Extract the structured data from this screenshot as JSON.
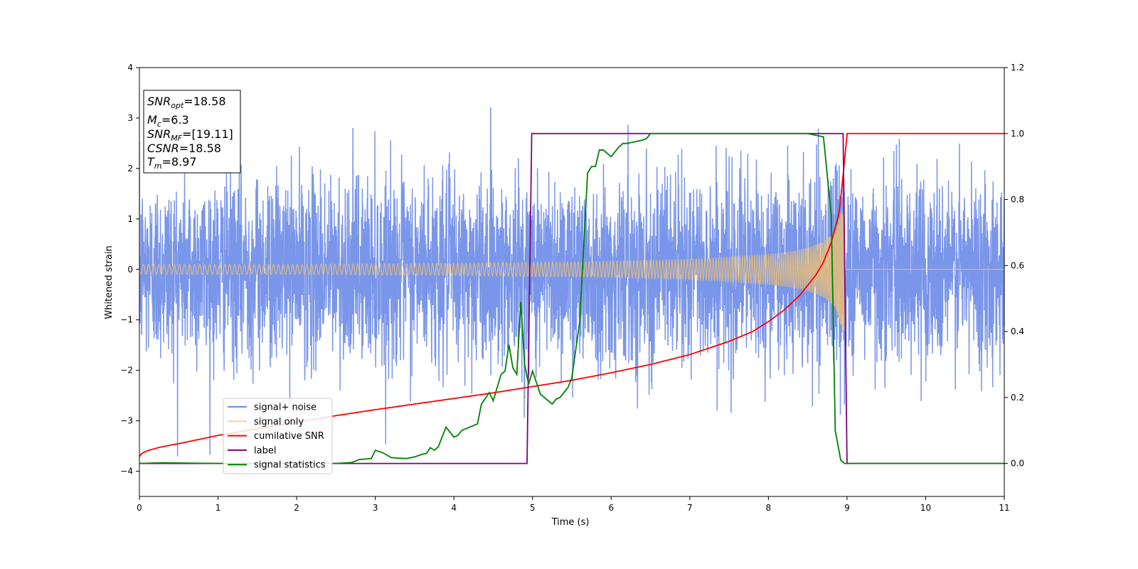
{
  "chart_data": {
    "type": "line",
    "xlabel": "Time (s)",
    "ylabel": "Whitened strain",
    "xlim": [
      0,
      11
    ],
    "ylim": [
      -4.5,
      4
    ],
    "y2lim": [
      -0.1,
      1.2
    ],
    "xticks": [
      0,
      1,
      2,
      3,
      4,
      5,
      6,
      7,
      8,
      9,
      10,
      11
    ],
    "yticks": [
      -4,
      -3,
      -2,
      -1,
      0,
      1,
      2,
      3,
      4
    ],
    "y2ticks": [
      0.0,
      0.2,
      0.4,
      0.6,
      0.8,
      1.0,
      1.2
    ],
    "grid": false,
    "legend_position": "lower-left",
    "info_box": {
      "snr_opt": {
        "base": "SNR",
        "sub": "opt",
        "value": "=18.58"
      },
      "mc": {
        "base": "M",
        "sub": "c",
        "value": "=6.3"
      },
      "snr_mf": {
        "base": "SNR",
        "sub": "MF",
        "value": "=[19.11]"
      },
      "csnr": {
        "base": "CSNR",
        "value": "=18.58"
      },
      "tm": {
        "base": "T",
        "sub": "m",
        "value": "=8.97"
      }
    },
    "series": [
      {
        "name": "signal+ noise",
        "color": "#6b8be8",
        "axis": "left",
        "description_values": {
          "noise_sigma": 0.9,
          "signal_end": 8.97
        }
      },
      {
        "name": "signal only",
        "color": "#f5c36b",
        "axis": "left",
        "envelope": {
          "x": [
            0,
            2,
            4,
            5,
            6,
            7,
            7.5,
            8,
            8.3,
            8.5,
            8.7,
            8.85,
            8.92,
            8.97,
            9.0,
            11
          ],
          "y": [
            0.1,
            0.1,
            0.12,
            0.14,
            0.16,
            0.2,
            0.24,
            0.3,
            0.36,
            0.43,
            0.55,
            0.75,
            1.1,
            1.3,
            0,
            0
          ]
        }
      },
      {
        "name": "cumilative SNR",
        "color": "#ff0000",
        "axis": "right",
        "x": [
          0,
          0.5,
          1,
          1.5,
          2,
          2.5,
          3,
          3.5,
          4,
          4.5,
          5,
          5.5,
          6,
          6.5,
          7,
          7.5,
          7.8,
          8,
          8.2,
          8.4,
          8.6,
          8.7,
          8.8,
          8.9,
          8.97,
          9.0,
          11
        ],
        "y": [
          0.02,
          0.06,
          0.085,
          0.105,
          0.125,
          0.145,
          0.163,
          0.18,
          0.197,
          0.214,
          0.233,
          0.252,
          0.275,
          0.3,
          0.33,
          0.37,
          0.4,
          0.43,
          0.465,
          0.51,
          0.57,
          0.61,
          0.67,
          0.76,
          0.92,
          1.0,
          1.0
        ]
      },
      {
        "name": "label",
        "color": "#800080",
        "axis": "right",
        "x": [
          0,
          4.93,
          4.99,
          8.95,
          9.0,
          11
        ],
        "y": [
          0,
          0,
          1,
          1,
          0,
          0
        ]
      },
      {
        "name": "signal statistics",
        "color": "#008000",
        "axis": "right",
        "x": [
          0,
          0.3,
          1,
          2,
          2.5,
          2.7,
          2.8,
          2.95,
          3.0,
          3.1,
          3.2,
          3.3,
          3.4,
          3.5,
          3.6,
          3.65,
          3.7,
          3.75,
          3.8,
          3.9,
          4.0,
          4.05,
          4.1,
          4.2,
          4.3,
          4.35,
          4.45,
          4.5,
          4.6,
          4.65,
          4.7,
          4.75,
          4.8,
          4.85,
          4.9,
          4.95,
          5.0,
          5.1,
          5.15,
          5.25,
          5.3,
          5.35,
          5.45,
          5.5,
          5.6,
          5.7,
          5.75,
          5.8,
          5.85,
          5.9,
          6.0,
          6.1,
          6.15,
          6.2,
          6.3,
          6.4,
          6.45,
          6.5,
          6.6,
          7.0,
          8.0,
          8.5,
          8.7,
          8.8,
          8.85,
          8.92,
          8.97,
          9.0,
          11
        ],
        "y": [
          0,
          0.002,
          0,
          0,
          0,
          0.003,
          0.012,
          0.015,
          0.04,
          0.032,
          0.018,
          0.016,
          0.015,
          0.02,
          0.028,
          0.03,
          0.048,
          0.04,
          0.05,
          0.11,
          0.08,
          0.085,
          0.1,
          0.11,
          0.12,
          0.18,
          0.215,
          0.19,
          0.27,
          0.28,
          0.36,
          0.29,
          0.27,
          0.49,
          0.3,
          0.24,
          0.28,
          0.21,
          0.2,
          0.18,
          0.195,
          0.2,
          0.23,
          0.26,
          0.43,
          0.88,
          0.9,
          0.9,
          0.95,
          0.95,
          0.93,
          0.96,
          0.97,
          0.97,
          0.975,
          0.98,
          0.985,
          1.0,
          1.0,
          1.0,
          1.0,
          1.0,
          0.99,
          0.75,
          0.1,
          0.01,
          0,
          0,
          0
        ]
      }
    ]
  }
}
